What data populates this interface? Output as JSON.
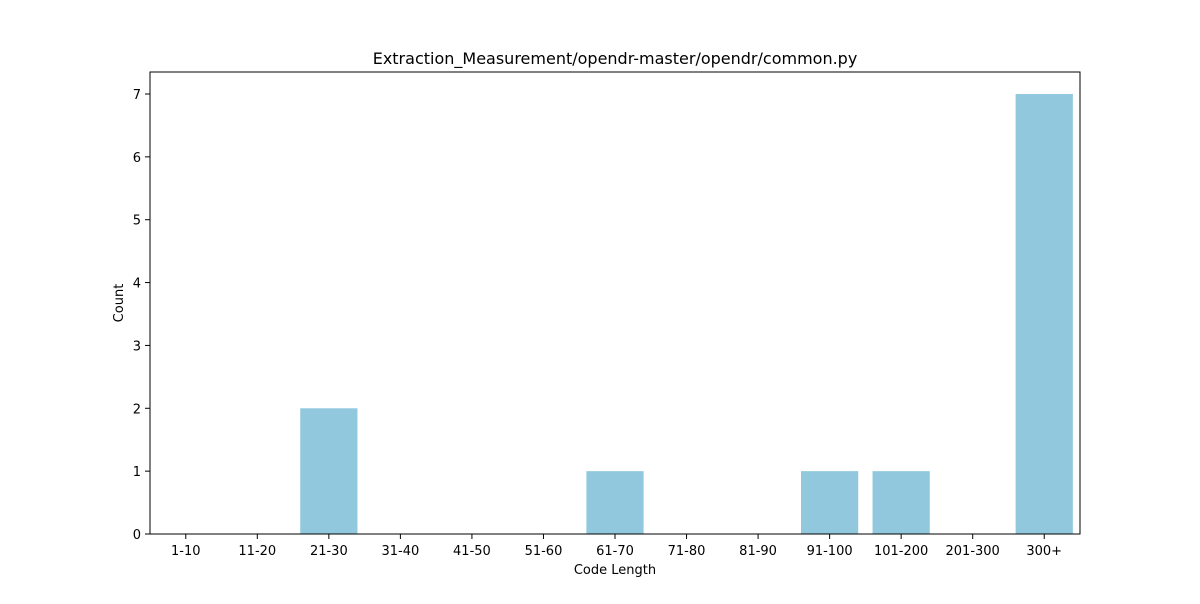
{
  "chart_data": {
    "type": "bar",
    "title": "Extraction_Measurement/opendr-master/opendr/common.py",
    "xlabel": "Code Length",
    "ylabel": "Count",
    "categories": [
      "1-10",
      "11-20",
      "21-30",
      "31-40",
      "41-50",
      "51-60",
      "61-70",
      "71-80",
      "81-90",
      "91-100",
      "101-200",
      "201-300",
      "300+"
    ],
    "values": [
      0,
      0,
      2,
      0,
      0,
      0,
      1,
      0,
      0,
      1,
      1,
      0,
      7
    ],
    "ylim": [
      0,
      7.35
    ],
    "yticks": [
      0,
      1,
      2,
      3,
      4,
      5,
      6,
      7
    ],
    "bar_color": "#92c8de",
    "grid": false,
    "legend": "none"
  }
}
